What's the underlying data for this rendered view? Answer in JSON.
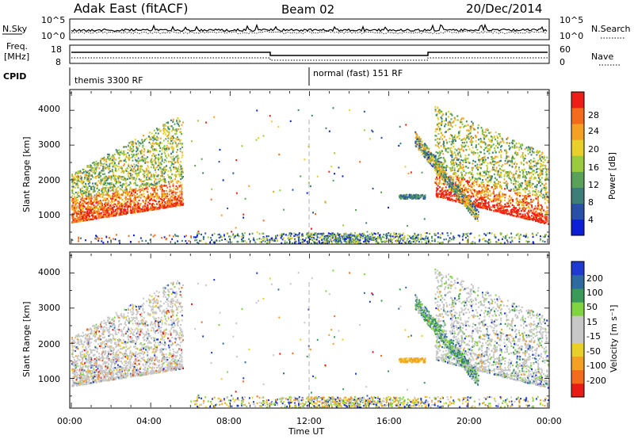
{
  "header": {
    "station": "Adak East (fitACF)",
    "beam": "Beam 02",
    "date": "20/Dec/2014"
  },
  "noise_panel": {
    "left_label": "N.Sky",
    "right_label": "N.Search",
    "ticks_left": [
      "10^5",
      "10^0"
    ],
    "ticks_right": [
      "10^5",
      "10^0"
    ]
  },
  "freq_panel": {
    "left_label_1": "Freq.",
    "left_label_2": "[MHz]",
    "right_label": "Nave",
    "ticks_left": [
      "18",
      "8"
    ],
    "ticks_right": [
      "60",
      "0"
    ]
  },
  "cpid_panel": {
    "label": "CPID",
    "programs": [
      {
        "name": "themis 3300 RF",
        "start_hour": 0,
        "end_hour": 12
      },
      {
        "name": "normal (fast) 151 RF",
        "start_hour": 12,
        "end_hour": 24
      }
    ]
  },
  "colors": {
    "power_scale": [
      "#0a1fd6",
      "#2a4fa8",
      "#3d7f78",
      "#5aa15a",
      "#9acb3f",
      "#e8cf2a",
      "#f3a024",
      "#f36b1c",
      "#ee1e16"
    ],
    "velocity_scale": [
      "#e81c14",
      "#f36b1c",
      "#f3a024",
      "#e8cf2a",
      "#c7c7c7",
      "#c7c7c7",
      "#7fd43f",
      "#3a9a5a",
      "#2d6aa0",
      "#1f3ad0"
    ],
    "noise_line": "#000000",
    "grey_scatter": "#c7c7c7"
  },
  "chart_data": [
    {
      "type": "heatmap",
      "title": "Power",
      "ylabel": "Slant Range [km]",
      "xlabel": "Time UT",
      "x_ticks": [
        "00:00",
        "04:00",
        "08:00",
        "12:00",
        "16:00",
        "20:00",
        "00:00"
      ],
      "y_ticks": [
        "1000",
        "2000",
        "3000",
        "4000"
      ],
      "ylim": [
        180,
        4550
      ],
      "xlim_hours": [
        0,
        24
      ],
      "colorbar_label": "Power [dB]",
      "colorbar_ticks": [
        "28",
        "24",
        "20",
        "16",
        "12",
        "8",
        "4"
      ]
    },
    {
      "type": "heatmap",
      "title": "Velocity",
      "ylabel": "Slant Range [km]",
      "xlabel": "Time UT",
      "x_ticks": [
        "00:00",
        "04:00",
        "08:00",
        "12:00",
        "16:00",
        "20:00",
        "00:00"
      ],
      "y_ticks": [
        "1000",
        "2000",
        "3000",
        "4000"
      ],
      "ylim": [
        180,
        4550
      ],
      "xlim_hours": [
        0,
        24
      ],
      "colorbar_label": "Velocity [m s⁻¹]",
      "colorbar_ticks": [
        "200",
        "100",
        "50",
        "15",
        "-15",
        "-50",
        "-100",
        "-200"
      ]
    }
  ]
}
